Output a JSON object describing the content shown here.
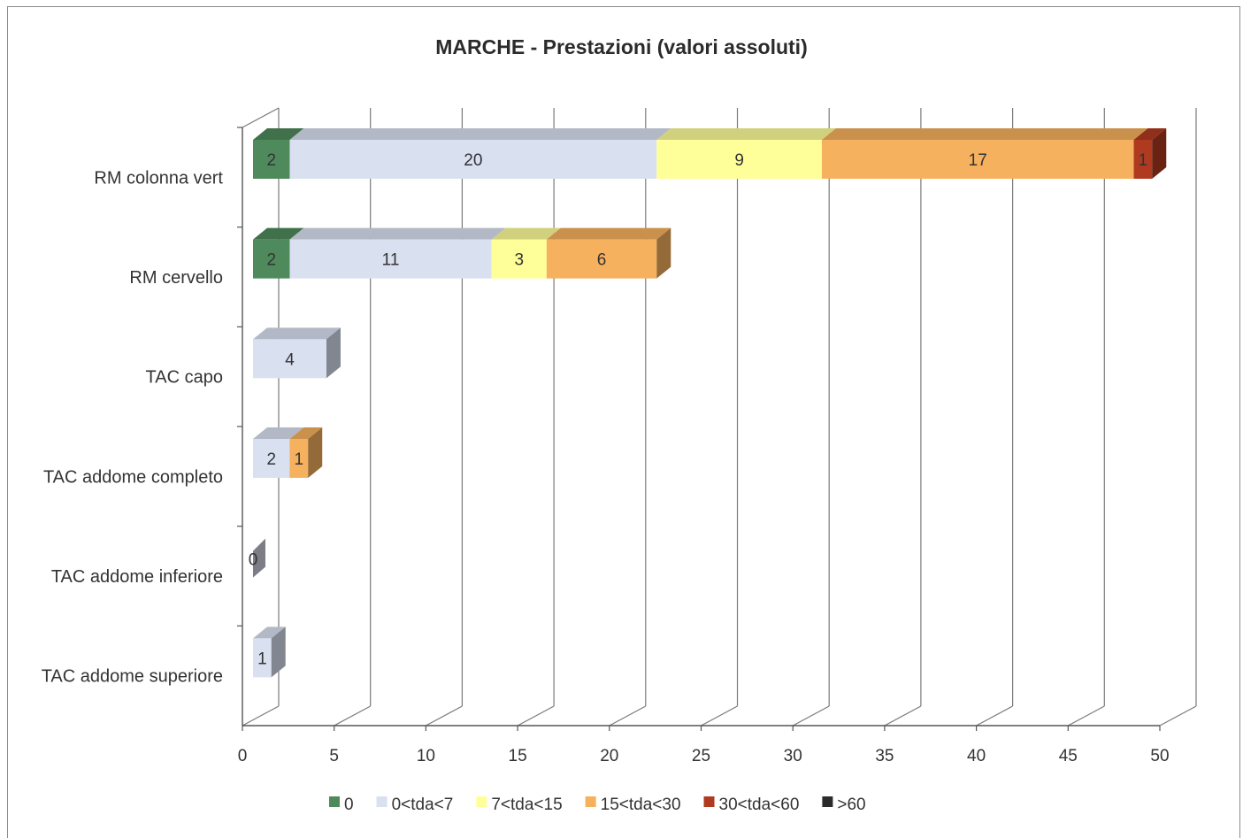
{
  "chart_data": {
    "type": "bar",
    "orientation": "horizontal",
    "stacked": true,
    "style": "3d",
    "title": "MARCHE - Prestazioni (valori assoluti)",
    "categories": [
      "RM colonna vert",
      "RM cervello",
      "TAC capo",
      "TAC addome completo",
      "TAC addome inferiore",
      "TAC addome superiore"
    ],
    "series": [
      {
        "name": "0",
        "color": "#4e8a5c",
        "values": [
          2,
          2,
          0,
          0,
          0,
          0
        ]
      },
      {
        "name": "0<tda<7",
        "color": "#d9e0f0",
        "values": [
          20,
          11,
          4,
          2,
          0,
          1
        ]
      },
      {
        "name": "7<tda<15",
        "color": "#ffff99",
        "values": [
          9,
          3,
          0,
          0,
          0,
          0
        ]
      },
      {
        "name": "15<tda<30",
        "color": "#f6b15e",
        "values": [
          17,
          6,
          0,
          1,
          0,
          0
        ]
      },
      {
        "name": "30<tda<60",
        "color": "#b03a20",
        "values": [
          1,
          0,
          0,
          0,
          0,
          0
        ]
      },
      {
        "name": ">60",
        "color": "#2b2b2b",
        "values": [
          0,
          0,
          0,
          0,
          0,
          0
        ]
      }
    ],
    "xlim": [
      0,
      50
    ],
    "xticks": [
      "0",
      "5",
      "10",
      "15",
      "20",
      "25",
      "30",
      "35",
      "40",
      "45",
      "50"
    ],
    "grid": true,
    "legend_position": "bottom"
  }
}
